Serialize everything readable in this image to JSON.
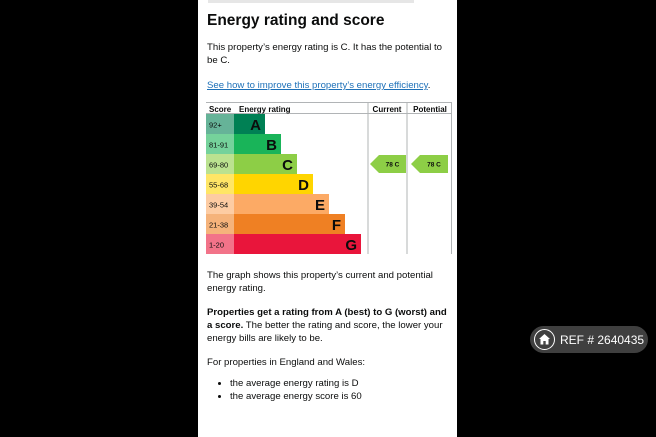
{
  "header": {
    "title": "Energy rating and score"
  },
  "intro": {
    "rating_text": "This property’s energy rating is C. It has the potential to be C.",
    "improve_link": "See how to improve this property’s energy efficiency",
    "improve_link_suffix": "."
  },
  "chart_data": {
    "type": "table",
    "headers": {
      "score": "Score",
      "rating": "Energy rating",
      "current": "Current",
      "potential": "Potential"
    },
    "bands": [
      {
        "score": "92+",
        "letter": "A",
        "color": "#008054",
        "score_color": "#66b398"
      },
      {
        "score": "81-91",
        "letter": "B",
        "color": "#19b459",
        "score_color": "#75d29b"
      },
      {
        "score": "69-80",
        "letter": "C",
        "color": "#8dce46",
        "score_color": "#bbe290"
      },
      {
        "score": "55-68",
        "letter": "D",
        "color": "#ffd500",
        "score_color": "#ffe666"
      },
      {
        "score": "39-54",
        "letter": "E",
        "color": "#fcaa65",
        "score_color": "#fdcca3"
      },
      {
        "score": "21-38",
        "letter": "F",
        "color": "#ef8023",
        "score_color": "#f5b37b"
      },
      {
        "score": "1-20",
        "letter": "G",
        "color": "#e9153b",
        "score_color": "#f27389"
      }
    ],
    "current": {
      "value": 78,
      "band": "C",
      "label": "78 C"
    },
    "potential": {
      "value": 78,
      "band": "C",
      "label": "78 C"
    }
  },
  "body": {
    "graph_text": "The graph shows this property’s current and potential energy rating.",
    "scale_bold": "Properties get a rating from A (best) to G (worst) and a score.",
    "scale_rest": " The better the rating and score, the lower your energy bills are likely to be.",
    "region_text": "For properties in England and Wales:",
    "bullets": [
      "the average energy rating is D",
      "the average energy score is 60"
    ]
  },
  "watermark": {
    "text": "REF # 2640435",
    "icon": "home-icon"
  }
}
